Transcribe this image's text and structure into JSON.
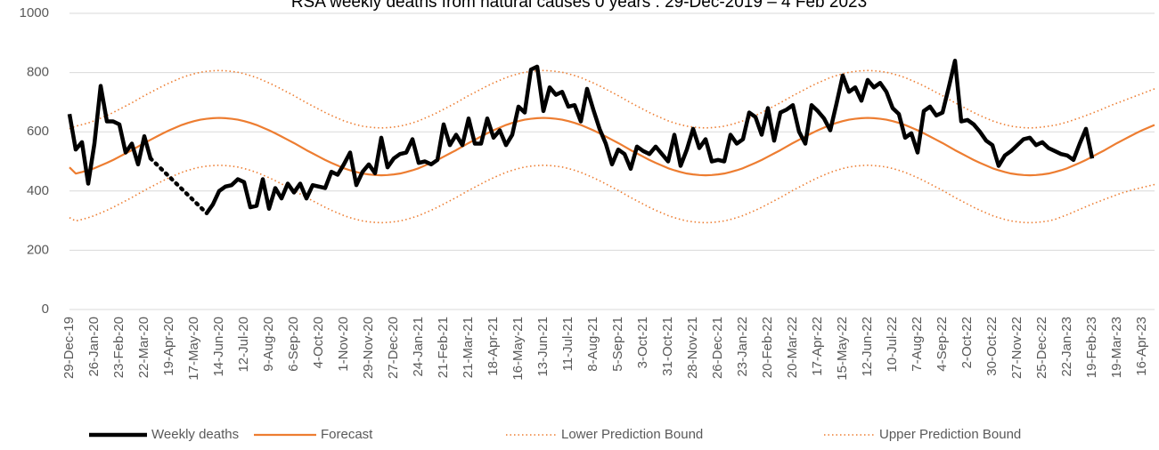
{
  "chart_data": {
    "type": "line",
    "title": "RSA weekly deaths from natural causes 0 years : 29-Dec-2019 – 4 Feb 2023",
    "categories": [
      "29-Dec-19",
      null,
      null,
      null,
      "26-Jan-20",
      null,
      null,
      null,
      "23-Feb-20",
      null,
      null,
      null,
      "22-Mar-20",
      null,
      null,
      null,
      "19-Apr-20",
      null,
      null,
      null,
      "17-May-20",
      null,
      null,
      null,
      "14-Jun-20",
      null,
      null,
      null,
      "12-Jul-20",
      null,
      null,
      null,
      "9-Aug-20",
      null,
      null,
      null,
      "6-Sep-20",
      null,
      null,
      null,
      "4-Oct-20",
      null,
      null,
      null,
      "1-Nov-20",
      null,
      null,
      null,
      "29-Nov-20",
      null,
      null,
      null,
      "27-Dec-20",
      null,
      null,
      null,
      "24-Jan-21",
      null,
      null,
      null,
      "21-Feb-21",
      null,
      null,
      null,
      "21-Mar-21",
      null,
      null,
      null,
      "18-Apr-21",
      null,
      null,
      null,
      "16-May-21",
      null,
      null,
      null,
      "13-Jun-21",
      null,
      null,
      null,
      "11-Jul-21",
      null,
      null,
      null,
      "8-Aug-21",
      null,
      null,
      null,
      "5-Sep-21",
      null,
      null,
      null,
      "3-Oct-21",
      null,
      null,
      null,
      "31-Oct-21",
      null,
      null,
      null,
      "28-Nov-21",
      null,
      null,
      null,
      "26-Dec-21",
      null,
      null,
      null,
      "23-Jan-22",
      null,
      null,
      null,
      "20-Feb-22",
      null,
      null,
      null,
      "20-Mar-22",
      null,
      null,
      null,
      "17-Apr-22",
      null,
      null,
      null,
      "15-May-22",
      null,
      null,
      null,
      "12-Jun-22",
      null,
      null,
      null,
      "10-Jul-22",
      null,
      null,
      null,
      "7-Aug-22",
      null,
      null,
      null,
      "4-Sep-22",
      null,
      null,
      null,
      "2-Oct-22",
      null,
      null,
      null,
      "30-Oct-22",
      null,
      null,
      null,
      "27-Nov-22",
      null,
      null,
      null,
      "25-Dec-22",
      null,
      null,
      null,
      "22-Jan-23",
      null,
      null,
      null,
      "19-Feb-23",
      null,
      null,
      null,
      "19-Mar-23",
      null,
      null,
      null,
      "16-Apr-23",
      null,
      null
    ],
    "series": [
      {
        "name": "Weekly deaths",
        "color": "#000000",
        "line_style": "solid",
        "values": [
          660,
          540,
          565,
          425,
          560,
          755,
          635,
          635,
          625,
          530,
          560,
          490,
          585,
          510,
          null,
          null,
          null,
          null,
          null,
          null,
          null,
          null,
          325,
          355,
          400,
          415,
          420,
          440,
          430,
          345,
          350,
          440,
          340,
          410,
          375,
          425,
          395,
          425,
          375,
          420,
          415,
          410,
          465,
          455,
          490,
          530,
          420,
          465,
          490,
          460,
          580,
          480,
          510,
          525,
          530,
          575,
          495,
          500,
          490,
          505,
          625,
          555,
          590,
          555,
          645,
          560,
          560,
          645,
          580,
          605,
          555,
          590,
          685,
          665,
          810,
          820,
          670,
          750,
          725,
          735,
          685,
          690,
          635,
          745,
          675,
          610,
          560,
          490,
          540,
          525,
          475,
          550,
          535,
          525,
          550,
          525,
          500,
          590,
          485,
          540,
          610,
          545,
          575,
          500,
          505,
          500,
          590,
          560,
          575,
          665,
          650,
          590,
          680,
          570,
          665,
          675,
          690,
          600,
          560,
          690,
          670,
          645,
          605,
          695,
          790,
          735,
          750,
          705,
          775,
          750,
          765,
          735,
          680,
          660,
          580,
          595,
          530,
          670,
          685,
          655,
          665,
          750,
          840,
          635,
          640,
          625,
          600,
          570,
          555,
          485,
          520,
          535,
          555,
          575,
          580,
          555,
          565,
          545,
          535,
          525,
          520,
          505,
          560,
          610,
          510,
          null,
          null,
          null,
          null,
          null,
          null,
          null,
          null,
          null,
          null
        ]
      },
      {
        "name": "Forecast",
        "color": "#ed7d31",
        "line_style": "solid",
        "values": [
          480,
          459,
          464,
          470,
          477,
          486,
          495,
          505,
          516,
          527,
          538,
          550,
          562,
          573,
          584,
          595,
          605,
          614,
          623,
          630,
          636,
          641,
          644,
          646,
          647,
          646,
          644,
          641,
          636,
          630,
          623,
          614,
          605,
          595,
          584,
          573,
          562,
          550,
          538,
          527,
          516,
          505,
          495,
          486,
          477,
          470,
          464,
          459,
          456,
          454,
          453,
          454,
          456,
          459,
          464,
          470,
          477,
          486,
          495,
          505,
          516,
          527,
          538,
          550,
          562,
          573,
          584,
          595,
          605,
          614,
          623,
          630,
          636,
          641,
          644,
          646,
          647,
          646,
          644,
          641,
          636,
          630,
          623,
          614,
          605,
          595,
          584,
          573,
          562,
          550,
          538,
          527,
          516,
          505,
          495,
          486,
          477,
          470,
          464,
          459,
          456,
          454,
          453,
          454,
          456,
          459,
          464,
          470,
          477,
          486,
          495,
          505,
          516,
          527,
          538,
          550,
          562,
          573,
          584,
          595,
          605,
          614,
          623,
          630,
          636,
          641,
          644,
          646,
          647,
          646,
          644,
          641,
          636,
          630,
          623,
          614,
          605,
          595,
          584,
          573,
          562,
          550,
          538,
          527,
          516,
          505,
          495,
          486,
          477,
          470,
          464,
          459,
          456,
          454,
          453,
          454,
          456,
          459,
          464,
          470,
          477,
          486,
          495,
          505,
          516,
          527,
          538,
          550,
          562,
          573,
          584,
          595,
          605,
          614,
          623
        ]
      },
      {
        "name": "Lower Prediction Bound",
        "color": "#ed7d31",
        "line_style": "dotted",
        "values": [
          310,
          299,
          304,
          310,
          317,
          326,
          335,
          345,
          356,
          367,
          378,
          390,
          402,
          413,
          424,
          435,
          445,
          454,
          463,
          470,
          476,
          481,
          484,
          486,
          487,
          486,
          484,
          481,
          476,
          470,
          463,
          454,
          445,
          435,
          424,
          413,
          402,
          390,
          378,
          367,
          356,
          345,
          335,
          326,
          317,
          310,
          304,
          299,
          296,
          294,
          293,
          294,
          296,
          299,
          304,
          310,
          317,
          326,
          335,
          345,
          356,
          367,
          378,
          390,
          402,
          413,
          424,
          435,
          445,
          454,
          463,
          470,
          476,
          481,
          484,
          486,
          487,
          486,
          484,
          481,
          476,
          470,
          463,
          454,
          445,
          435,
          424,
          413,
          402,
          390,
          378,
          367,
          356,
          345,
          335,
          326,
          317,
          310,
          304,
          299,
          296,
          294,
          293,
          294,
          296,
          299,
          304,
          310,
          317,
          326,
          335,
          345,
          356,
          367,
          378,
          390,
          402,
          413,
          424,
          435,
          445,
          454,
          463,
          470,
          476,
          481,
          484,
          486,
          487,
          486,
          484,
          481,
          476,
          470,
          463,
          454,
          445,
          435,
          424,
          413,
          402,
          390,
          378,
          367,
          356,
          345,
          335,
          326,
          317,
          310,
          304,
          299,
          296,
          294,
          293,
          294,
          296,
          299,
          304,
          312,
          320,
          329,
          338,
          347,
          356,
          364,
          372,
          380,
          388,
          395,
          401,
          407,
          412,
          417,
          422
        ]
      },
      {
        "name": "Upper Prediction Bound",
        "color": "#ed7d31",
        "line_style": "dotted",
        "values": [
          610,
          619,
          624,
          630,
          637,
          646,
          655,
          665,
          676,
          687,
          698,
          710,
          722,
          733,
          744,
          755,
          765,
          774,
          783,
          790,
          796,
          801,
          804,
          806,
          807,
          806,
          804,
          801,
          796,
          790,
          783,
          774,
          765,
          755,
          744,
          733,
          722,
          710,
          698,
          687,
          676,
          665,
          655,
          646,
          637,
          630,
          624,
          619,
          616,
          614,
          613,
          614,
          616,
          619,
          624,
          630,
          637,
          646,
          655,
          665,
          676,
          687,
          698,
          710,
          722,
          733,
          744,
          755,
          765,
          774,
          783,
          790,
          796,
          801,
          804,
          806,
          807,
          806,
          804,
          801,
          796,
          790,
          783,
          774,
          765,
          755,
          744,
          733,
          722,
          710,
          698,
          687,
          676,
          665,
          655,
          646,
          637,
          630,
          624,
          619,
          616,
          614,
          613,
          614,
          616,
          619,
          624,
          630,
          637,
          646,
          655,
          665,
          676,
          687,
          698,
          710,
          722,
          733,
          744,
          755,
          765,
          774,
          783,
          790,
          796,
          801,
          804,
          806,
          807,
          806,
          804,
          801,
          796,
          790,
          783,
          774,
          765,
          755,
          744,
          733,
          722,
          710,
          698,
          687,
          676,
          665,
          655,
          646,
          637,
          630,
          624,
          619,
          616,
          614,
          613,
          614,
          616,
          619,
          622,
          627,
          633,
          640,
          647,
          655,
          663,
          671,
          680,
          689,
          697,
          705,
          713,
          721,
          729,
          737,
          745
        ]
      }
    ],
    "ylim": [
      0,
      1000
    ],
    "yticks": [
      0,
      200,
      400,
      600,
      800,
      1000
    ],
    "grid": true,
    "legend": "bottom"
  }
}
